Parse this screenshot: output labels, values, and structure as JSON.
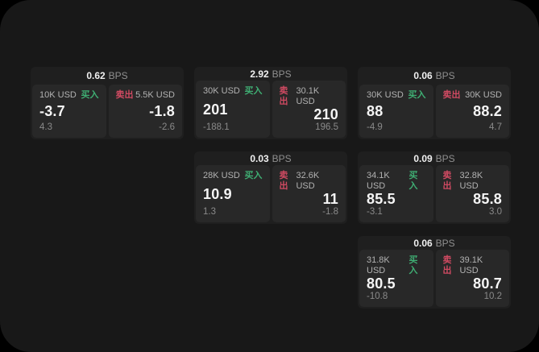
{
  "colors": {
    "buy_green": "#3fae73",
    "sell_red": "#d04a62",
    "surface": "#181818",
    "card_bg": "#1f1f1f",
    "panel_bg": "#282828"
  },
  "cards": [
    {
      "bps": "0.62",
      "bps_unit": "BPS",
      "buy": {
        "amount": "10K USD",
        "side_label": "买入",
        "price": "-3.7",
        "delta": "4.3"
      },
      "sell": {
        "side_label": "卖出",
        "amount": "5.5K USD",
        "price": "-1.8",
        "delta": "-2.6"
      }
    },
    {
      "bps": "2.92",
      "bps_unit": "BPS",
      "buy": {
        "amount": "30K USD",
        "side_label": "买入",
        "price": "201",
        "delta": "-188.1"
      },
      "sell": {
        "side_label": "卖出",
        "amount": "30.1K USD",
        "price": "210",
        "delta": "196.5"
      }
    },
    {
      "bps": "0.06",
      "bps_unit": "BPS",
      "buy": {
        "amount": "30K USD",
        "side_label": "买入",
        "price": "88",
        "delta": "-4.9"
      },
      "sell": {
        "side_label": "卖出",
        "amount": "30K USD",
        "price": "88.2",
        "delta": "4.7"
      }
    },
    {
      "bps": "0.03",
      "bps_unit": "BPS",
      "buy": {
        "amount": "28K USD",
        "side_label": "买入",
        "price": "10.9",
        "delta": "1.3"
      },
      "sell": {
        "side_label": "卖出",
        "amount": "32.6K USD",
        "price": "11",
        "delta": "-1.8"
      }
    },
    {
      "bps": "0.09",
      "bps_unit": "BPS",
      "buy": {
        "amount": "34.1K USD",
        "side_label": "买入",
        "price": "85.5",
        "delta": "-3.1"
      },
      "sell": {
        "side_label": "卖出",
        "amount": "32.8K USD",
        "price": "85.8",
        "delta": "3.0"
      }
    },
    {
      "bps": "0.06",
      "bps_unit": "BPS",
      "buy": {
        "amount": "31.8K USD",
        "side_label": "买入",
        "price": "80.5",
        "delta": "-10.8"
      },
      "sell": {
        "side_label": "卖出",
        "amount": "39.1K USD",
        "price": "80.7",
        "delta": "10.2"
      }
    }
  ]
}
